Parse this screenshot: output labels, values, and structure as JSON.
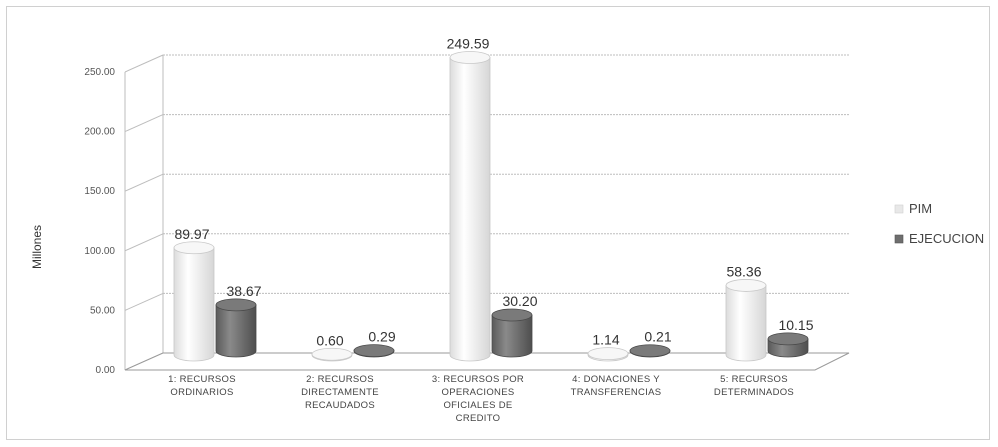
{
  "chart_data": {
    "type": "bar",
    "style": "3d-cylinder",
    "ylabel": "Millones",
    "xlabel": "",
    "ylim": [
      0,
      250
    ],
    "yticks": [
      0,
      50,
      100,
      150,
      200,
      250
    ],
    "ytick_labels": [
      "0.00",
      "50.00",
      "100.00",
      "150.00",
      "200.00",
      "250.00"
    ],
    "grid": true,
    "legend_position": "right",
    "categories": [
      "1: RECURSOS ORDINARIOS",
      "2: RECURSOS DIRECTAMENTE RECAUDADOS",
      "3: RECURSOS POR OPERACIONES OFICIALES DE CREDITO",
      "4: DONACIONES Y TRANSFERENCIAS",
      "5: RECURSOS DETERMINADOS"
    ],
    "category_lines": [
      [
        "1: RECURSOS",
        "ORDINARIOS"
      ],
      [
        "2: RECURSOS",
        "DIRECTAMENTE",
        "RECAUDADOS"
      ],
      [
        "3: RECURSOS POR",
        "OPERACIONES",
        "OFICIALES DE",
        "CREDITO"
      ],
      [
        "4: DONACIONES Y",
        "TRANSFERENCIAS"
      ],
      [
        "5: RECURSOS",
        "DETERMINADOS"
      ]
    ],
    "series": [
      {
        "name": "PIM",
        "color": "#efefef",
        "values": [
          89.97,
          0.6,
          249.59,
          1.14,
          58.36
        ],
        "labels": [
          "89.97",
          "0.60",
          "249.59",
          "1.14",
          "58.36"
        ]
      },
      {
        "name": "EJECUCION",
        "color": "#6e6e6e",
        "values": [
          38.67,
          0.29,
          30.2,
          0.21,
          10.15
        ],
        "labels": [
          "38.67",
          "0.29",
          "30.20",
          "0.21",
          "10.15"
        ]
      }
    ]
  }
}
